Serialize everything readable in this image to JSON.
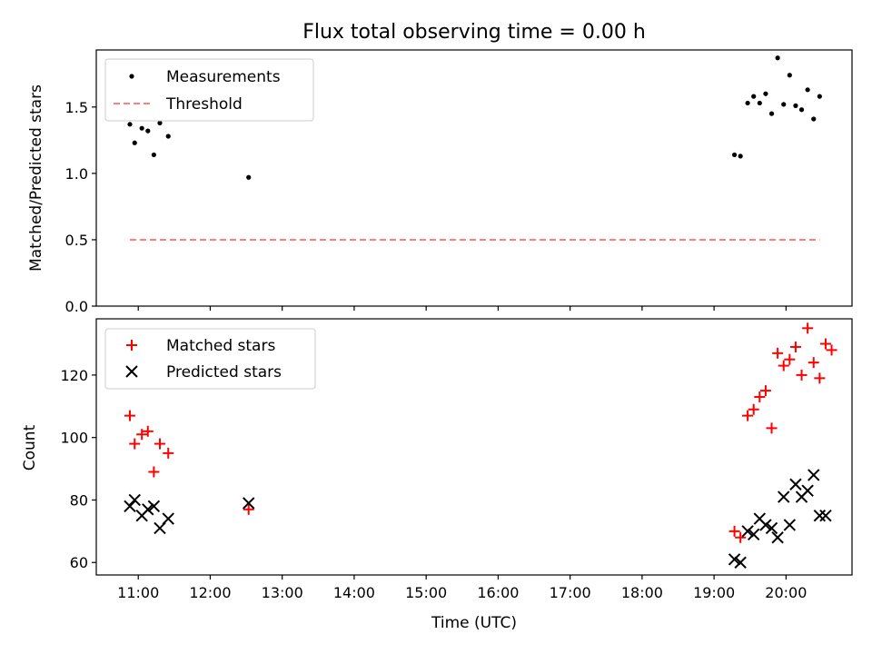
{
  "figure": {
    "title": "Flux total observing time = 0.00 h",
    "xlabel": "Time (UTC)"
  },
  "chart_data": [
    {
      "type": "scatter",
      "ylabel": "Matched/Predicted stars",
      "xlim": [
        "10:25",
        "20:55"
      ],
      "ylim": [
        0,
        1.93
      ],
      "yticks": [
        0.0,
        0.5,
        1.0,
        1.5
      ],
      "ytick_labels": [
        "0.0",
        "0.5",
        "1.0",
        "1.5"
      ],
      "legend_position": "upper-left",
      "grid": false,
      "series": [
        {
          "name": "Measurements",
          "marker": "dot",
          "color": "#000000",
          "x": [
            "10:53",
            "10:57",
            "11:03",
            "11:08",
            "11:13",
            "11:18",
            "11:25",
            "12:32",
            "19:17",
            "19:22",
            "19:28",
            "19:33",
            "19:38",
            "19:43",
            "19:48",
            "19:53",
            "19:58",
            "20:03",
            "20:08",
            "20:13",
            "20:18",
            "20:23",
            "20:28"
          ],
          "y": [
            1.37,
            1.23,
            1.34,
            1.32,
            1.14,
            1.38,
            1.28,
            0.97,
            1.14,
            1.13,
            1.53,
            1.58,
            1.53,
            1.6,
            1.45,
            1.87,
            1.52,
            1.74,
            1.51,
            1.48,
            1.63,
            1.41,
            1.58
          ]
        },
        {
          "name": "Threshold",
          "marker": "dashed-line",
          "color": "#ff7f7f",
          "x": [
            "10:53",
            "20:28"
          ],
          "y": [
            0.5,
            0.5
          ]
        }
      ]
    },
    {
      "type": "scatter",
      "ylabel": "Count",
      "xlim": [
        "10:25",
        "20:55"
      ],
      "ylim": [
        56,
        138
      ],
      "yticks": [
        60,
        80,
        100,
        120
      ],
      "ytick_labels": [
        "60",
        "80",
        "100",
        "120"
      ],
      "xticks": [
        "11:00",
        "12:00",
        "13:00",
        "14:00",
        "15:00",
        "16:00",
        "17:00",
        "18:00",
        "19:00",
        "20:00"
      ],
      "legend_position": "upper-left",
      "grid": false,
      "series": [
        {
          "name": "Matched stars",
          "marker": "plus",
          "color": "#ff0000",
          "x": [
            "10:53",
            "10:57",
            "11:03",
            "11:08",
            "11:13",
            "11:18",
            "11:25",
            "12:32",
            "19:17",
            "19:22",
            "19:28",
            "19:33",
            "19:38",
            "19:43",
            "19:48",
            "19:53",
            "19:58",
            "20:03",
            "20:08",
            "20:13",
            "20:18",
            "20:23",
            "20:28",
            "20:33",
            "20:38"
          ],
          "y": [
            107,
            98,
            101,
            102,
            89,
            98,
            95,
            77,
            70,
            68,
            107,
            109,
            113,
            115,
            103,
            127,
            123,
            125,
            129,
            120,
            135,
            124,
            119,
            130,
            128
          ]
        },
        {
          "name": "Predicted stars",
          "marker": "x",
          "color": "#000000",
          "x": [
            "10:53",
            "10:57",
            "11:03",
            "11:08",
            "11:13",
            "11:18",
            "11:25",
            "12:32",
            "19:17",
            "19:22",
            "19:28",
            "19:33",
            "19:38",
            "19:43",
            "19:48",
            "19:53",
            "19:58",
            "20:03",
            "20:08",
            "20:13",
            "20:18",
            "20:23",
            "20:28",
            "20:33"
          ],
          "y": [
            78,
            80,
            75,
            77,
            78,
            71,
            74,
            79,
            61,
            60,
            70,
            69,
            74,
            72,
            71,
            68,
            81,
            72,
            85,
            81,
            83,
            88,
            75,
            75
          ]
        }
      ]
    }
  ]
}
